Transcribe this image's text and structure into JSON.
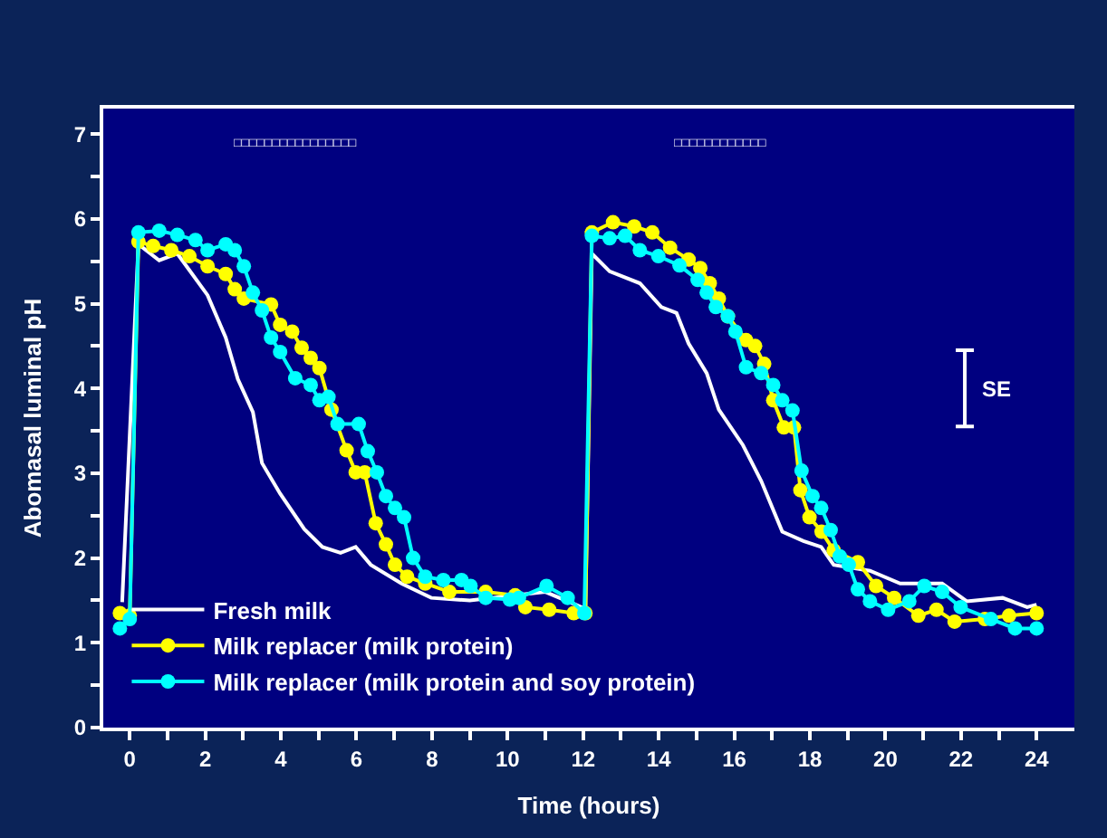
{
  "chart_data": {
    "type": "line",
    "xlabel": "Time (hours)",
    "ylabel": "Abomasal luminal pH",
    "xlim": [
      -0.7,
      25
    ],
    "ylim": [
      0,
      7.3
    ],
    "xticks": [
      0,
      {
        "value": 1,
        "label": null
      },
      2,
      {
        "value": 3,
        "label": null
      },
      4,
      {
        "value": 5,
        "label": null
      },
      6,
      {
        "value": 7,
        "label": null
      },
      8,
      {
        "value": 9,
        "label": null
      },
      10,
      {
        "value": 11,
        "label": null
      },
      12,
      {
        "value": 13,
        "label": null
      },
      14,
      {
        "value": 15,
        "label": null
      },
      16,
      {
        "value": 17,
        "label": null
      },
      18,
      {
        "value": 19,
        "label": null
      },
      20,
      {
        "value": 21,
        "label": null
      },
      22,
      {
        "value": 23,
        "label": null
      },
      24
    ],
    "yticks": [
      0,
      {
        "value": 0.5,
        "label": null
      },
      1,
      {
        "value": 1.5,
        "label": null
      },
      2,
      {
        "value": 2.5,
        "label": null
      },
      3,
      {
        "value": 3.5,
        "label": null
      },
      4,
      {
        "value": 4.5,
        "label": null
      },
      5,
      {
        "value": 5.5,
        "label": null
      },
      6,
      {
        "value": 6.5,
        "label": null
      },
      7
    ],
    "grid": false,
    "legend": "bottom left",
    "series": [
      {
        "name": "Fresh milk",
        "color": "#ffffff",
        "marker": "none",
        "x": [
          -0.2,
          0.23,
          0.78,
          1.26,
          2.06,
          2.54,
          2.86,
          3.26,
          3.5,
          3.98,
          4.62,
          5.1,
          5.58,
          5.98,
          6.38,
          7.19,
          7.98,
          9.0,
          10.0,
          11.0,
          11.8,
          12.06,
          12.23,
          12.7,
          13.5,
          14.07,
          14.47,
          14.79,
          15.27,
          15.59,
          16.23,
          16.71,
          17.27,
          17.83,
          18.3,
          18.63,
          19.59,
          20.39,
          21.5,
          22.15,
          23.1,
          23.75,
          24.0
        ],
        "values": [
          1.48,
          5.7,
          5.51,
          5.59,
          5.1,
          4.6,
          4.11,
          3.72,
          3.12,
          2.76,
          2.34,
          2.13,
          2.06,
          2.13,
          1.92,
          1.7,
          1.53,
          1.5,
          1.55,
          1.6,
          1.45,
          1.4,
          5.59,
          5.38,
          5.24,
          4.96,
          4.89,
          4.53,
          4.18,
          3.75,
          3.33,
          2.91,
          2.31,
          2.2,
          2.13,
          1.92,
          1.85,
          1.7,
          1.7,
          1.49,
          1.53,
          1.42,
          1.45
        ]
      },
      {
        "name": "Milk replacer (milk protein)",
        "color": "#ffff00",
        "marker": "circle",
        "x": [
          -0.26,
          0.0,
          0.23,
          0.62,
          1.1,
          1.58,
          2.06,
          2.54,
          2.78,
          3.02,
          3.74,
          3.98,
          4.3,
          4.55,
          4.79,
          5.02,
          5.34,
          5.74,
          5.98,
          6.22,
          6.51,
          6.78,
          7.02,
          7.34,
          7.82,
          8.46,
          9.42,
          10.2,
          10.47,
          11.1,
          11.75,
          12.06,
          12.23,
          12.79,
          13.35,
          13.83,
          14.3,
          14.79,
          15.1,
          15.35,
          15.59,
          15.83,
          16.31,
          16.55,
          16.79,
          17.03,
          17.31,
          17.58,
          17.75,
          17.99,
          18.31,
          18.63,
          19.27,
          19.75,
          20.23,
          20.87,
          21.35,
          21.83,
          22.63,
          23.27,
          24.0
        ],
        "values": [
          1.35,
          1.32,
          5.73,
          5.68,
          5.63,
          5.56,
          5.44,
          5.35,
          5.17,
          5.06,
          4.99,
          4.75,
          4.67,
          4.48,
          4.36,
          4.24,
          3.75,
          3.27,
          3.01,
          3.01,
          2.41,
          2.16,
          1.92,
          1.78,
          1.7,
          1.6,
          1.6,
          1.56,
          1.42,
          1.39,
          1.35,
          1.35,
          5.84,
          5.96,
          5.91,
          5.84,
          5.66,
          5.52,
          5.42,
          5.24,
          5.06,
          4.85,
          4.57,
          4.5,
          4.29,
          3.86,
          3.54,
          3.54,
          2.8,
          2.48,
          2.31,
          2.09,
          1.95,
          1.67,
          1.53,
          1.32,
          1.39,
          1.25,
          1.28,
          1.32,
          1.35
        ]
      },
      {
        "name": "Milk replacer (milk protein and soy protein)",
        "color": "#00ffff",
        "marker": "circle",
        "x": [
          -0.26,
          0.0,
          0.23,
          0.78,
          1.26,
          1.74,
          2.06,
          2.54,
          2.78,
          3.02,
          3.26,
          3.5,
          3.74,
          3.98,
          4.38,
          4.79,
          5.02,
          5.26,
          5.5,
          6.06,
          6.3,
          6.54,
          6.78,
          7.02,
          7.26,
          7.5,
          7.82,
          8.3,
          8.78,
          9.02,
          9.42,
          10.06,
          10.3,
          11.03,
          11.59,
          12.03,
          12.23,
          12.7,
          13.11,
          13.5,
          13.99,
          14.55,
          15.03,
          15.27,
          15.51,
          15.83,
          16.03,
          16.31,
          16.71,
          17.03,
          17.27,
          17.54,
          17.78,
          18.07,
          18.3,
          18.55,
          18.79,
          19.03,
          19.27,
          19.59,
          20.07,
          20.63,
          21.03,
          21.5,
          21.99,
          22.79,
          23.43,
          24.0
        ],
        "values": [
          1.17,
          1.28,
          5.84,
          5.86,
          5.81,
          5.75,
          5.63,
          5.7,
          5.63,
          5.44,
          5.13,
          4.92,
          4.6,
          4.43,
          4.12,
          4.04,
          3.86,
          3.9,
          3.58,
          3.58,
          3.26,
          3.01,
          2.73,
          2.59,
          2.48,
          2.0,
          1.78,
          1.74,
          1.74,
          1.67,
          1.53,
          1.51,
          1.53,
          1.67,
          1.53,
          1.35,
          5.8,
          5.77,
          5.8,
          5.63,
          5.56,
          5.45,
          5.28,
          5.13,
          4.96,
          4.85,
          4.67,
          4.25,
          4.18,
          4.04,
          3.86,
          3.74,
          3.03,
          2.73,
          2.59,
          2.33,
          2.02,
          1.92,
          1.63,
          1.49,
          1.39,
          1.49,
          1.67,
          1.6,
          1.42,
          1.28,
          1.17,
          1.17
        ]
      },
      {
        "type": "line",
        "color": "#ffffff",
        "marker": "none",
        "x": [
          22.1,
          22.1
        ],
        "values": [
          3.55,
          4.45
        ],
        "errors": [
          0,
          0
        ]
      }
    ],
    "annotations": [
      "SE",
      "□□□□□□□□□□□□□□□□",
      "□□□□□□□□□□□□"
    ]
  }
}
